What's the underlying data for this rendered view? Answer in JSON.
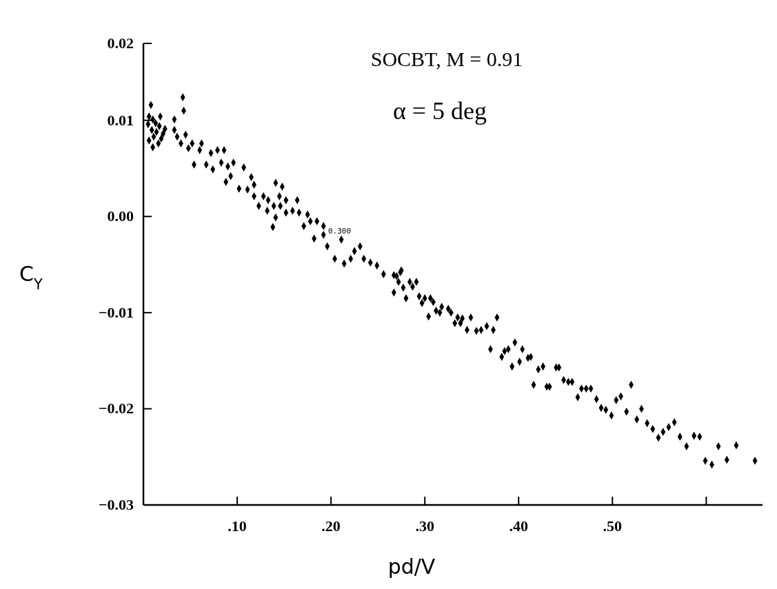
{
  "chart_data": {
    "type": "scatter",
    "xlabel": "pd/V",
    "ylabel": "C$_{Y}$",
    "marker": "diamond",
    "grid": false,
    "annotations": [
      "SOCBT,  M = 0.91",
      "α = 5 deg",
      {
        "text": "0.300",
        "x": 0.194,
        "y": -0.0019
      }
    ],
    "xlim": [
      0,
      0.66
    ],
    "xticks": [
      {
        "value": 0.1,
        "label": ".10"
      },
      {
        "value": 0.2,
        "label": ".20"
      },
      {
        "value": 0.3,
        "label": ".30"
      },
      {
        "value": 0.4,
        "label": ".40"
      },
      {
        "value": 0.5,
        "label": ".50"
      },
      {
        "value": 0.6,
        "label": null
      }
    ],
    "ylim": [
      -0.03,
      0.018
    ],
    "yticks": [
      {
        "value": -0.03,
        "label": "−0.03"
      },
      {
        "value": -0.02,
        "label": "−0.02"
      },
      {
        "value": -0.01,
        "label": "−0.01"
      },
      {
        "value": 0,
        "label": "0.00"
      },
      {
        "value": 0.01,
        "label": "0.01"
      },
      {
        "value": 0.018,
        "label": "0.02"
      }
    ],
    "series": [
      {
        "color": "#000000",
        "x": [
          0.008,
          0.042,
          0.043,
          0.006,
          0.01,
          0.013,
          0.017,
          0.009,
          0.021,
          0.011,
          0.006,
          0.016,
          0.01,
          0.018,
          0.023,
          0.005,
          0.014,
          0.019,
          0.033,
          0.033,
          0.036,
          0.04,
          0.045,
          0.048,
          0.052,
          0.054,
          0.06,
          0.062,
          0.067,
          0.072,
          0.079,
          0.086,
          0.074,
          0.083,
          0.09,
          0.096,
          0.107,
          0.088,
          0.093,
          0.102,
          0.111,
          0.115,
          0.118,
          0.118,
          0.128,
          0.123,
          0.132,
          0.133,
          0.141,
          0.148,
          0.145,
          0.139,
          0.141,
          0.138,
          0.146,
          0.152,
          0.152,
          0.164,
          0.159,
          0.166,
          0.171,
          0.175,
          0.178,
          0.185,
          0.192,
          0.182,
          0.192,
          0.196,
          0.204,
          0.211,
          0.214,
          0.221,
          0.225,
          0.231,
          0.235,
          0.242,
          0.249,
          0.256,
          0.27,
          0.274,
          0.267,
          0.275,
          0.272,
          0.267,
          0.277,
          0.28,
          0.284,
          0.287,
          0.291,
          0.294,
          0.297,
          0.3,
          0.306,
          0.309,
          0.304,
          0.312,
          0.316,
          0.318,
          0.325,
          0.328,
          0.335,
          0.34,
          0.332,
          0.338,
          0.345,
          0.349,
          0.355,
          0.36,
          0.366,
          0.373,
          0.377,
          0.37,
          0.382,
          0.385,
          0.389,
          0.393,
          0.396,
          0.401,
          0.404,
          0.41,
          0.413,
          0.416,
          0.421,
          0.426,
          0.43,
          0.433,
          0.44,
          0.443,
          0.448,
          0.453,
          0.457,
          0.463,
          0.467,
          0.472,
          0.477,
          0.483,
          0.488,
          0.493,
          0.499,
          0.504,
          0.509,
          0.515,
          0.52,
          0.526,
          0.531,
          0.537,
          0.543,
          0.549,
          0.554,
          0.56,
          0.566,
          0.572,
          0.579,
          0.587,
          0.593,
          0.599,
          0.606,
          0.613,
          0.622,
          0.632,
          0.652
        ],
        "values": [
          0.0116,
          0.0124,
          0.011,
          0.0104,
          0.0101,
          0.0097,
          0.0094,
          0.009,
          0.0086,
          0.0083,
          0.0079,
          0.0076,
          0.0072,
          0.0104,
          0.0091,
          0.0096,
          0.0088,
          0.0081,
          0.0101,
          0.009,
          0.0083,
          0.0076,
          0.0085,
          0.0071,
          0.0076,
          0.0054,
          0.0069,
          0.0076,
          0.0054,
          0.0066,
          0.0069,
          0.0069,
          0.0049,
          0.0056,
          0.0052,
          0.0056,
          0.0051,
          0.0036,
          0.0042,
          0.0029,
          0.0028,
          0.0041,
          0.0033,
          0.0021,
          0.0021,
          0.0011,
          0.0006,
          0.0017,
          0.0035,
          0.0031,
          0.0021,
          0.0011,
          -0.0001,
          -0.0011,
          0.0011,
          0.0017,
          0.0004,
          0.0017,
          0.0006,
          0.0004,
          -0.001,
          0.0002,
          -0.0005,
          -0.0005,
          -0.001,
          -0.0023,
          -0.0019,
          -0.0031,
          -0.0044,
          -0.0024,
          -0.0049,
          -0.0044,
          -0.0036,
          -0.0031,
          -0.0044,
          -0.0048,
          -0.0051,
          -0.006,
          -0.0062,
          -0.0058,
          -0.0061,
          -0.0056,
          -0.0068,
          -0.0079,
          -0.0074,
          -0.0085,
          -0.0068,
          -0.0073,
          -0.0068,
          -0.0083,
          -0.009,
          -0.0085,
          -0.0085,
          -0.0089,
          -0.0104,
          -0.0098,
          -0.01,
          -0.0094,
          -0.0096,
          -0.01,
          -0.0105,
          -0.0106,
          -0.0111,
          -0.0111,
          -0.0118,
          -0.0105,
          -0.0119,
          -0.0118,
          -0.0114,
          -0.0118,
          -0.0105,
          -0.0138,
          -0.0146,
          -0.014,
          -0.0138,
          -0.0156,
          -0.0131,
          -0.0151,
          -0.0138,
          -0.0147,
          -0.0146,
          -0.0175,
          -0.0159,
          -0.0156,
          -0.0177,
          -0.0177,
          -0.0157,
          -0.0157,
          -0.017,
          -0.0172,
          -0.0172,
          -0.0188,
          -0.0179,
          -0.0179,
          -0.0179,
          -0.019,
          -0.0199,
          -0.0201,
          -0.0207,
          -0.0191,
          -0.0187,
          -0.0203,
          -0.0175,
          -0.0211,
          -0.02,
          -0.0215,
          -0.0221,
          -0.023,
          -0.0224,
          -0.0219,
          -0.0214,
          -0.0229,
          -0.0239,
          -0.0228,
          -0.0229,
          -0.0254,
          -0.0258,
          -0.0239,
          -0.0253,
          -0.0238,
          -0.0254
        ]
      }
    ]
  }
}
